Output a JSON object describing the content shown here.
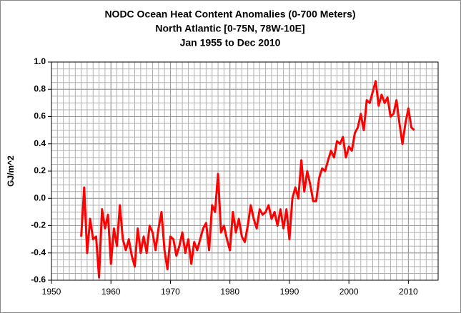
{
  "chart_data": {
    "type": "line",
    "title": [
      "NODC Ocean Heat Content Anomalies (0-700 Meters)",
      "North Atlantic [0-75N, 78W-10E]",
      "Jan 1955 to Dec 2010"
    ],
    "ylabel": "GJ/m^2",
    "color": "#ff0000",
    "grid": true,
    "minor_grid_step": {
      "x": 1,
      "y": 0.05
    },
    "xlim": [
      1950,
      2015
    ],
    "xticks": [
      1950,
      1960,
      1970,
      1980,
      1990,
      2000,
      2010
    ],
    "ylim": [
      -0.6,
      1.0
    ],
    "yticks": [
      {
        "value": 1,
        "label": "1.0"
      },
      0.8,
      0.6,
      0.4,
      0.2,
      {
        "value": 0,
        "label": "0.0"
      },
      -0.2,
      -0.4,
      -0.6
    ],
    "x": [
      1955.0,
      1955.5,
      1956.0,
      1956.5,
      1957.0,
      1957.5,
      1958.0,
      1958.5,
      1959.0,
      1959.5,
      1960.0,
      1960.5,
      1961.0,
      1961.5,
      1962.0,
      1962.5,
      1963.0,
      1963.5,
      1964.0,
      1964.5,
      1965.0,
      1965.5,
      1966.0,
      1966.5,
      1967.0,
      1967.5,
      1968.0,
      1968.5,
      1969.0,
      1969.5,
      1970.0,
      1970.5,
      1971.0,
      1971.5,
      1972.0,
      1972.5,
      1973.0,
      1973.5,
      1974.0,
      1974.5,
      1975.0,
      1975.5,
      1976.0,
      1976.5,
      1977.0,
      1977.5,
      1978.0,
      1978.5,
      1979.0,
      1979.5,
      1980.0,
      1980.5,
      1981.0,
      1981.5,
      1982.0,
      1982.5,
      1983.0,
      1983.5,
      1984.0,
      1984.5,
      1985.0,
      1985.5,
      1986.0,
      1986.5,
      1987.0,
      1987.5,
      1988.0,
      1988.5,
      1989.0,
      1989.5,
      1990.0,
      1990.5,
      1991.0,
      1991.5,
      1992.0,
      1992.5,
      1993.0,
      1993.5,
      1994.0,
      1994.5,
      1995.0,
      1995.5,
      1996.0,
      1996.5,
      1997.0,
      1997.5,
      1998.0,
      1998.5,
      1999.0,
      1999.5,
      2000.0,
      2000.5,
      2001.0,
      2001.5,
      2002.0,
      2002.5,
      2003.0,
      2003.5,
      2004.0,
      2004.5,
      2005.0,
      2005.5,
      2006.0,
      2006.5,
      2007.0,
      2007.5,
      2008.0,
      2008.5,
      2009.0,
      2009.5,
      2010.0,
      2010.5,
      2011.0
    ],
    "values": [
      -0.28,
      0.08,
      -0.4,
      -0.15,
      -0.3,
      -0.28,
      -0.58,
      -0.08,
      -0.22,
      -0.12,
      -0.48,
      -0.22,
      -0.35,
      -0.05,
      -0.3,
      -0.38,
      -0.3,
      -0.42,
      -0.5,
      -0.22,
      -0.4,
      -0.28,
      -0.4,
      -0.2,
      -0.25,
      -0.38,
      -0.22,
      -0.1,
      -0.38,
      -0.52,
      -0.28,
      -0.3,
      -0.42,
      -0.35,
      -0.25,
      -0.4,
      -0.3,
      -0.48,
      -0.32,
      -0.38,
      -0.3,
      -0.22,
      -0.18,
      -0.38,
      -0.05,
      -0.1,
      0.18,
      -0.25,
      -0.2,
      -0.3,
      -0.38,
      -0.1,
      -0.25,
      -0.15,
      -0.28,
      -0.32,
      -0.2,
      -0.05,
      -0.15,
      -0.22,
      -0.08,
      -0.12,
      -0.1,
      -0.05,
      -0.15,
      -0.1,
      -0.2,
      -0.08,
      -0.22,
      -0.08,
      -0.3,
      0.0,
      0.08,
      0.0,
      0.28,
      0.05,
      0.2,
      0.1,
      -0.02,
      -0.02,
      0.15,
      0.22,
      0.2,
      0.28,
      0.35,
      0.3,
      0.42,
      0.4,
      0.45,
      0.3,
      0.38,
      0.35,
      0.48,
      0.52,
      0.62,
      0.5,
      0.72,
      0.7,
      0.78,
      0.86,
      0.68,
      0.76,
      0.7,
      0.74,
      0.6,
      0.62,
      0.72,
      0.55,
      0.4,
      0.55,
      0.66,
      0.52,
      0.5
    ]
  }
}
